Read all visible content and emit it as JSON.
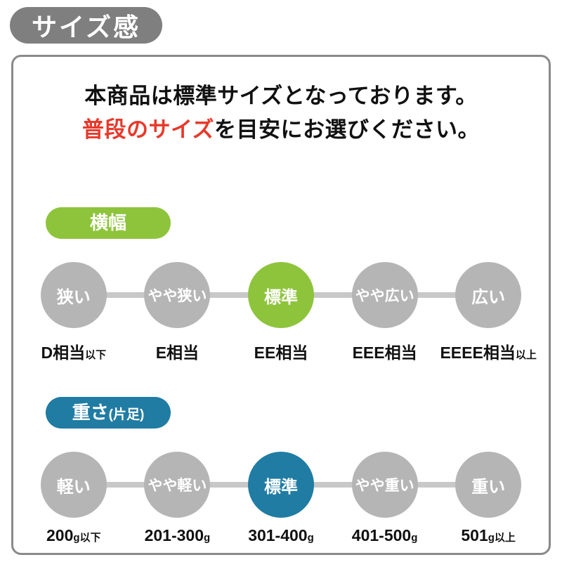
{
  "page": {
    "title_badge": "サイズ感",
    "colors": {
      "badge_gray": "#7f7f7f",
      "panel_border": "#8a8a8a",
      "circle_gray": "#b5b5b5",
      "track_gray": "#c8c8c8",
      "accent_green": "#8ec43c",
      "accent_teal": "#207ca3",
      "highlight_red": "#e8392b"
    }
  },
  "intro": {
    "line1": "本商品は標準サイズとなっております。",
    "line2_highlight": "普段のサイズ",
    "line2_rest": "を目安にお選びください。"
  },
  "sections": [
    {
      "id": "width",
      "label": "横幅",
      "label_suffix": "",
      "accent_color": "#8ec43c",
      "selected_index": 2,
      "steps": [
        "狭い",
        "やや狭い",
        "標準",
        "やや広い",
        "広い"
      ],
      "scale": [
        {
          "big": "D相当",
          "small": "以下"
        },
        {
          "big": "E相当",
          "small": ""
        },
        {
          "big": "EE相当",
          "small": ""
        },
        {
          "big": "EEE相当",
          "small": ""
        },
        {
          "big": "EEEE相当",
          "small": "以上"
        }
      ]
    },
    {
      "id": "weight",
      "label": "重さ",
      "label_suffix": "(片足)",
      "accent_color": "#207ca3",
      "selected_index": 2,
      "steps": [
        "軽い",
        "やや軽い",
        "標準",
        "やや重い",
        "重い"
      ],
      "scale": [
        {
          "big": "200",
          "small": "g以下"
        },
        {
          "big": "201-300",
          "small": "g"
        },
        {
          "big": "301-400",
          "small": "g"
        },
        {
          "big": "401-500",
          "small": "g"
        },
        {
          "big": "501",
          "small": "g以上"
        }
      ]
    }
  ]
}
